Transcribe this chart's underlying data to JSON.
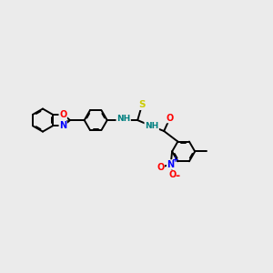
{
  "bg_color": "#ebebeb",
  "line_color": "#000000",
  "figsize": [
    3.0,
    3.0
  ],
  "dpi": 100,
  "lw": 1.4,
  "r_hex": 0.42,
  "colors": {
    "O": "#ff0000",
    "N": "#0000ff",
    "S": "#cccc00",
    "NH": "#008080",
    "C": "#000000",
    "charge_plus": "#0000ff",
    "charge_minus": "#ff0000",
    "methyl": "#000000"
  }
}
